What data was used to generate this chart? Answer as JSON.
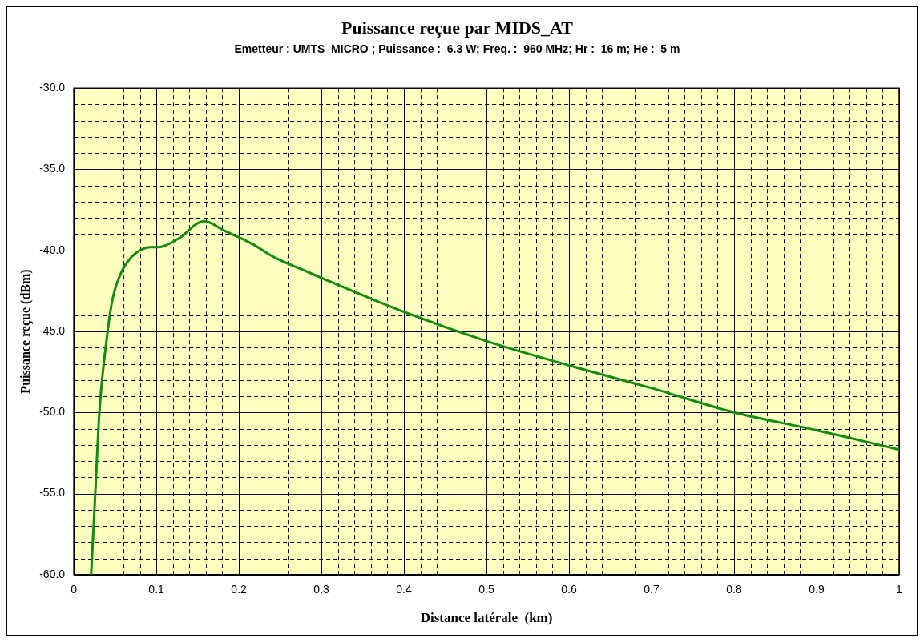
{
  "chart_data": {
    "type": "line",
    "title": "Puissance reçue par MIDS_AT",
    "subtitle": "Emetteur : UMTS_MICRO ; Puissance :  6.3 W; Freq. :  960 MHz; Hr :  16 m; He :  5 m",
    "xlabel": "Distance latérale  (km)",
    "ylabel": "Puissance reçue (dBm)",
    "x": [
      0.021,
      0.026,
      0.031,
      0.041,
      0.047,
      0.059,
      0.07,
      0.08,
      0.093,
      0.103,
      0.126,
      0.158,
      0.183,
      0.216,
      0.242,
      0.282,
      0.3,
      0.4,
      0.5,
      0.6,
      0.7,
      0.8,
      0.9,
      1.0
    ],
    "series": [
      {
        "color": "#108a10",
        "values": [
          -60,
          -55,
          -50,
          -45,
          -43,
          -41.2,
          -40.4,
          -40,
          -39.8,
          -39.8,
          -39.3,
          -38.2,
          -38.8,
          -39.6,
          -40.4,
          -41.3,
          -41.7,
          -43.8,
          -45.6,
          -47.1,
          -48.5,
          -50,
          -51.1,
          -52.3
        ]
      }
    ],
    "xlim": [
      0,
      1
    ],
    "ylim": [
      -60,
      -30
    ],
    "xticks": [
      0,
      {
        "value": 0.02,
        "label": null
      },
      {
        "value": 0.04,
        "label": null
      },
      {
        "value": 0.06,
        "label": null
      },
      {
        "value": 0.08,
        "label": null
      },
      0.1,
      {
        "value": 0.12,
        "label": null
      },
      {
        "value": 0.14,
        "label": null
      },
      {
        "value": 0.16,
        "label": null
      },
      {
        "value": 0.18,
        "label": null
      },
      0.2,
      {
        "value": 0.22,
        "label": null
      },
      {
        "value": 0.24,
        "label": null
      },
      {
        "value": 0.26,
        "label": null
      },
      {
        "value": 0.28,
        "label": null
      },
      0.3,
      {
        "value": 0.32,
        "label": null
      },
      {
        "value": 0.34,
        "label": null
      },
      {
        "value": 0.36,
        "label": null
      },
      {
        "value": 0.38,
        "label": null
      },
      0.4,
      {
        "value": 0.42,
        "label": null
      },
      {
        "value": 0.44,
        "label": null
      },
      {
        "value": 0.46,
        "label": null
      },
      {
        "value": 0.48,
        "label": null
      },
      0.5,
      {
        "value": 0.52,
        "label": null
      },
      {
        "value": 0.54,
        "label": null
      },
      {
        "value": 0.56,
        "label": null
      },
      {
        "value": 0.58,
        "label": null
      },
      0.6,
      {
        "value": 0.62,
        "label": null
      },
      {
        "value": 0.64,
        "label": null
      },
      {
        "value": 0.66,
        "label": null
      },
      {
        "value": 0.68,
        "label": null
      },
      0.7,
      {
        "value": 0.72,
        "label": null
      },
      {
        "value": 0.74,
        "label": null
      },
      {
        "value": 0.76,
        "label": null
      },
      {
        "value": 0.78,
        "label": null
      },
      0.8,
      {
        "value": 0.82,
        "label": null
      },
      {
        "value": 0.84,
        "label": null
      },
      {
        "value": 0.86,
        "label": null
      },
      {
        "value": 0.88,
        "label": null
      },
      0.9,
      {
        "value": 0.92,
        "label": null
      },
      {
        "value": 0.94,
        "label": null
      },
      {
        "value": 0.96,
        "label": null
      },
      {
        "value": 0.98,
        "label": null
      },
      1
    ],
    "yticks": [
      {
        "value": -60,
        "label": "-60.0"
      },
      {
        "value": -59,
        "label": null
      },
      {
        "value": -58,
        "label": null
      },
      {
        "value": -57,
        "label": null
      },
      {
        "value": -56,
        "label": null
      },
      {
        "value": -55,
        "label": "-55.0"
      },
      {
        "value": -54,
        "label": null
      },
      {
        "value": -53,
        "label": null
      },
      {
        "value": -52,
        "label": null
      },
      {
        "value": -51,
        "label": null
      },
      {
        "value": -50,
        "label": "-50.0"
      },
      {
        "value": -49,
        "label": null
      },
      {
        "value": -48,
        "label": null
      },
      {
        "value": -47,
        "label": null
      },
      {
        "value": -46,
        "label": null
      },
      {
        "value": -45,
        "label": "-45.0"
      },
      {
        "value": -44,
        "label": null
      },
      {
        "value": -43,
        "label": null
      },
      {
        "value": -42,
        "label": null
      },
      {
        "value": -41,
        "label": null
      },
      {
        "value": -40,
        "label": "-40.0"
      },
      {
        "value": -39,
        "label": null
      },
      {
        "value": -38,
        "label": null
      },
      {
        "value": -37,
        "label": null
      },
      {
        "value": -36,
        "label": null
      },
      {
        "value": -35,
        "label": "-35.0"
      },
      {
        "value": -34,
        "label": null
      },
      {
        "value": -33,
        "label": null
      },
      {
        "value": -32,
        "label": null
      },
      {
        "value": -31,
        "label": null
      },
      {
        "value": -30,
        "label": "-30.0"
      }
    ],
    "grid": true,
    "legend": false,
    "marker": "none",
    "line_style": "solid"
  }
}
